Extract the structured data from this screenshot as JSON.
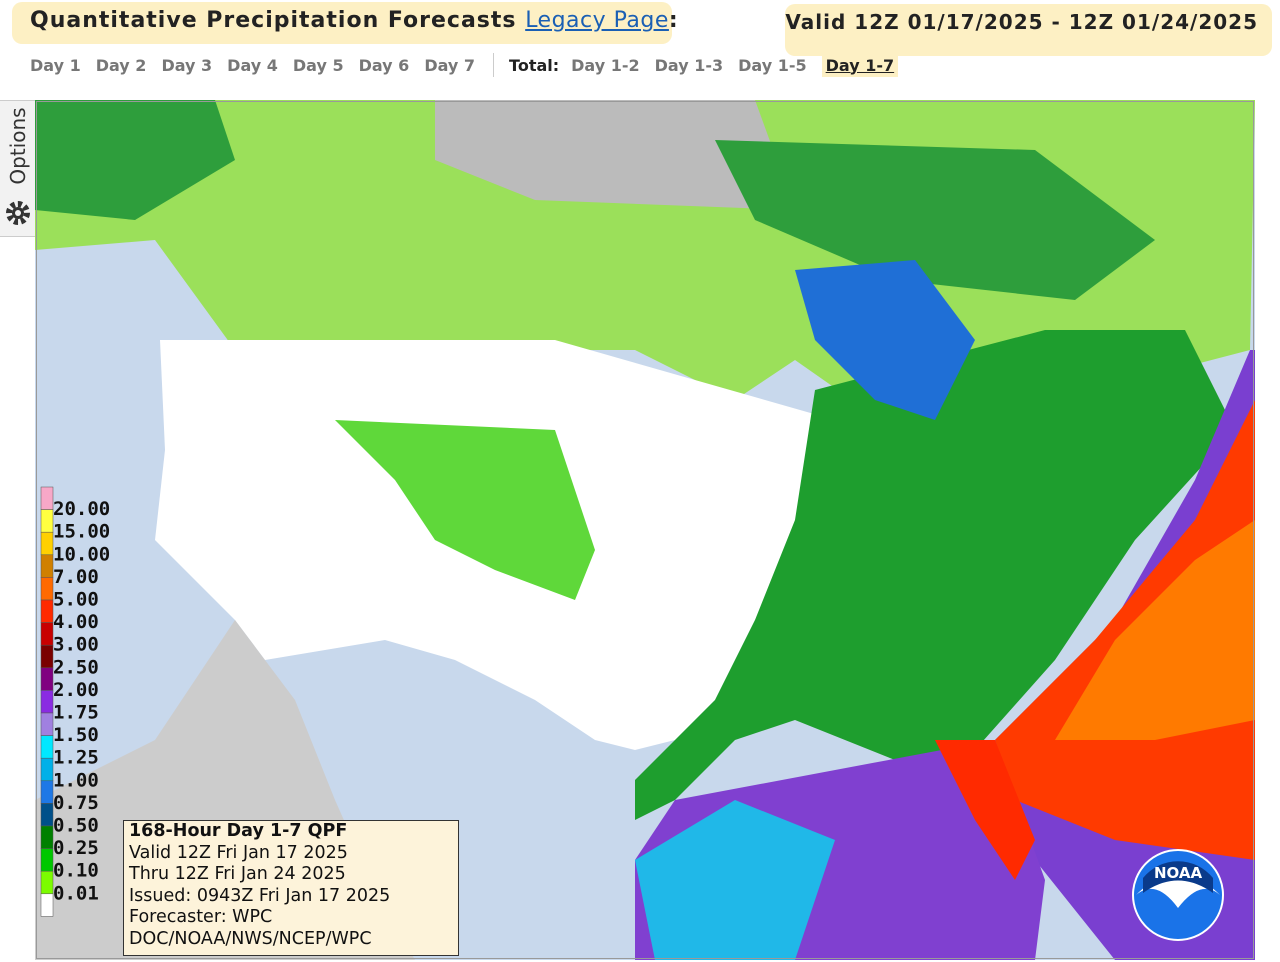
{
  "header": {
    "title": "Quantitative Precipitation Forecasts",
    "link": "Legacy Page",
    "colon": ":",
    "valid": "Valid 12Z 01/17/2025 - 12Z 01/24/2025"
  },
  "tabs": {
    "days": [
      "Day 1",
      "Day 2",
      "Day 3",
      "Day 4",
      "Day 5",
      "Day 6",
      "Day 7"
    ],
    "total_label": "Total:",
    "totals": [
      "Day 1-2",
      "Day 1-3",
      "Day 1-5",
      "Day 1-7"
    ]
  },
  "options": "Options",
  "legend": {
    "labels": [
      "20.00",
      "15.00",
      "10.00",
      "7.00",
      "5.00",
      "4.00",
      "3.00",
      "2.50",
      "2.00",
      "1.75",
      "1.50",
      "1.25",
      "1.00",
      "0.75",
      "0.50",
      "0.25",
      "0.10",
      "0.01"
    ],
    "colors": [
      "#f7a8c8",
      "#ffff40",
      "#ffd000",
      "#d08000",
      "#ff6a00",
      "#ff2a00",
      "#c80000",
      "#7a0000",
      "#800080",
      "#8a2be2",
      "#a080e0",
      "#00e8ff",
      "#00b0e8",
      "#1e78e6",
      "#00508a",
      "#008000",
      "#00c800",
      "#7cfc00"
    ]
  },
  "info": [
    "168-Hour Day 1-7 QPF",
    "Valid 12Z Fri Jan 17 2025",
    "Thru 12Z Fri Jan 24 2025",
    "Issued: 0943Z Fri Jan 17 2025",
    "Forecaster: WPC",
    "DOC/NOAA/NWS/NCEP/WPC"
  ],
  "logo": "NOAA"
}
